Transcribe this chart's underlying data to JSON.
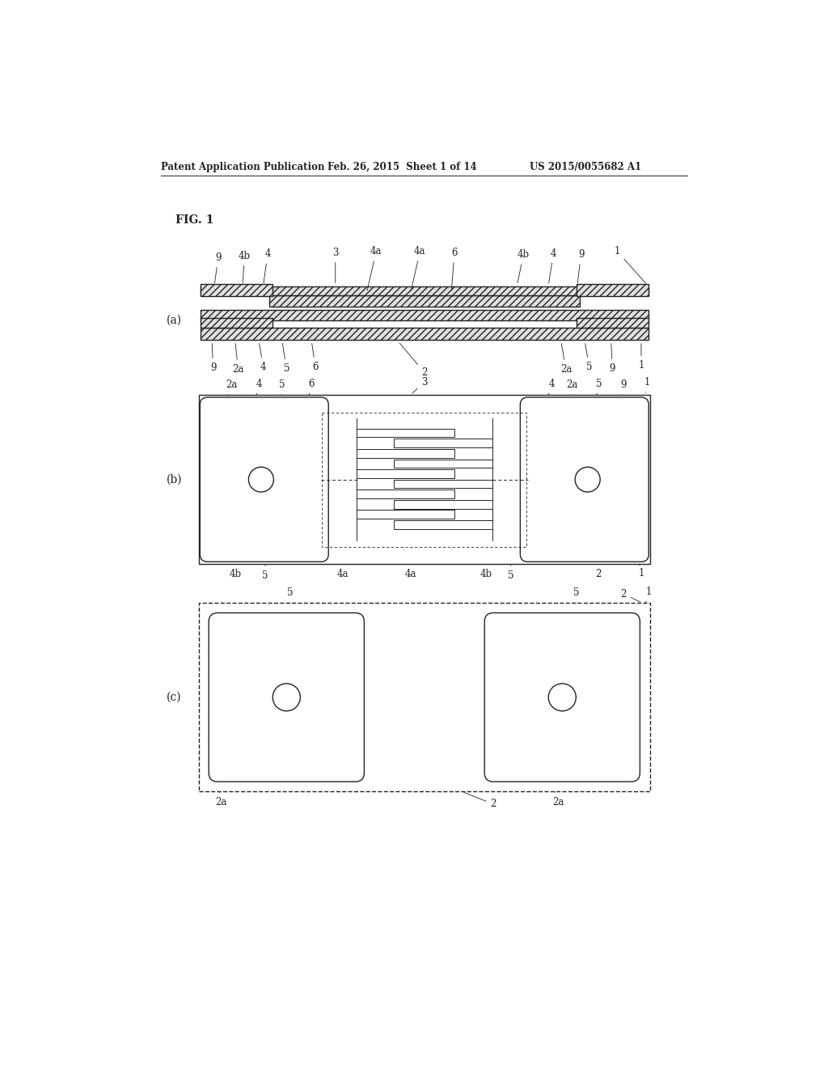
{
  "bg_color": "#ffffff",
  "text_color": "#111111",
  "header_left": "Patent Application Publication",
  "header_mid": "Feb. 26, 2015  Sheet 1 of 14",
  "header_right": "US 2015/0055682 A1",
  "fig_label": "FIG. 1",
  "sub_a": "(a)",
  "sub_b": "(b)",
  "sub_c": "(c)",
  "line_color": "#222222",
  "hatch_color": "#555555",
  "hatch_face": "#e0e0e0"
}
